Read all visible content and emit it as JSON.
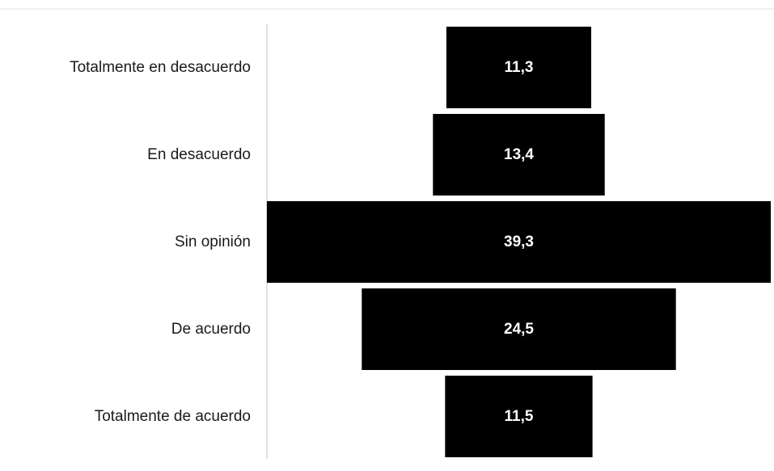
{
  "chart_data": {
    "type": "bar",
    "subtype": "funnel",
    "categories": [
      "Totalmente en desacuerdo",
      "En desacuerdo",
      "Sin opinión",
      "De acuerdo",
      "Totalmente de acuerdo"
    ],
    "values": [
      11.3,
      13.4,
      39.3,
      24.5,
      11.5
    ],
    "value_labels": [
      "11,3",
      "13,4",
      "39,3",
      "24,5",
      "11,5"
    ],
    "title": "",
    "xlabel": "",
    "ylabel": "",
    "bar_color": "#000000",
    "value_label_color": "#ffffff",
    "legend": "none",
    "grid": false
  }
}
